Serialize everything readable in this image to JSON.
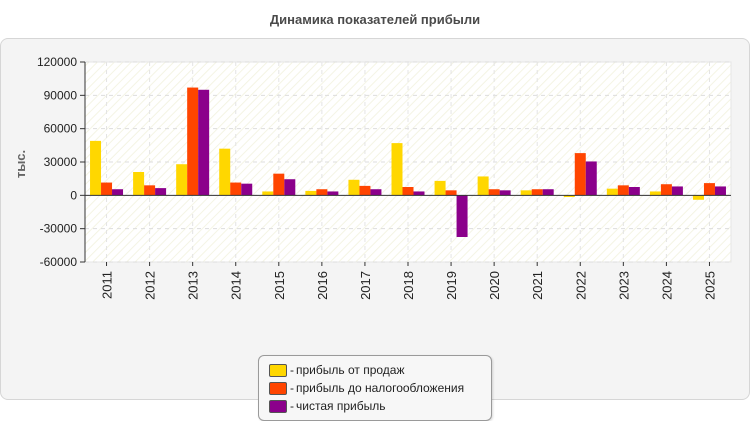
{
  "chart_data": {
    "type": "bar",
    "title": "Динамика показателей прибыли",
    "ylabel": "тыс.",
    "xlabel": "",
    "ylim": [
      -60000,
      120000
    ],
    "yticks": [
      120000,
      90000,
      60000,
      30000,
      0,
      -30000,
      -60000
    ],
    "categories": [
      "2011",
      "2012",
      "2013",
      "2014",
      "2015",
      "2016",
      "2017",
      "2018",
      "2019",
      "2020",
      "2021",
      "2022",
      "2023",
      "2024",
      "2025"
    ],
    "series": [
      {
        "name": "прибыль от продаж",
        "color": "#ffd700",
        "values": [
          49000,
          21000,
          28000,
          42000,
          3500,
          4000,
          14000,
          47000,
          13000,
          17000,
          4500,
          -1500,
          6000,
          3500,
          -4000
        ]
      },
      {
        "name": "прибыль до налогообложения",
        "color": "#ff4500",
        "values": [
          11500,
          9000,
          97000,
          11500,
          19500,
          5500,
          8500,
          7500,
          4500,
          5500,
          5500,
          38000,
          9000,
          10000,
          11000
        ]
      },
      {
        "name": "чистая прибыль",
        "color": "#8b008b",
        "values": [
          5500,
          6500,
          95000,
          10500,
          14500,
          3500,
          5500,
          3500,
          -37500,
          4500,
          5500,
          30500,
          7500,
          8000,
          8000
        ]
      }
    ],
    "grid": true,
    "legend_position": "bottom-center"
  },
  "legend": {
    "dash": "-",
    "items": [
      "прибыль от продаж",
      "прибыль до налогообложения",
      "чистая прибыль"
    ]
  }
}
